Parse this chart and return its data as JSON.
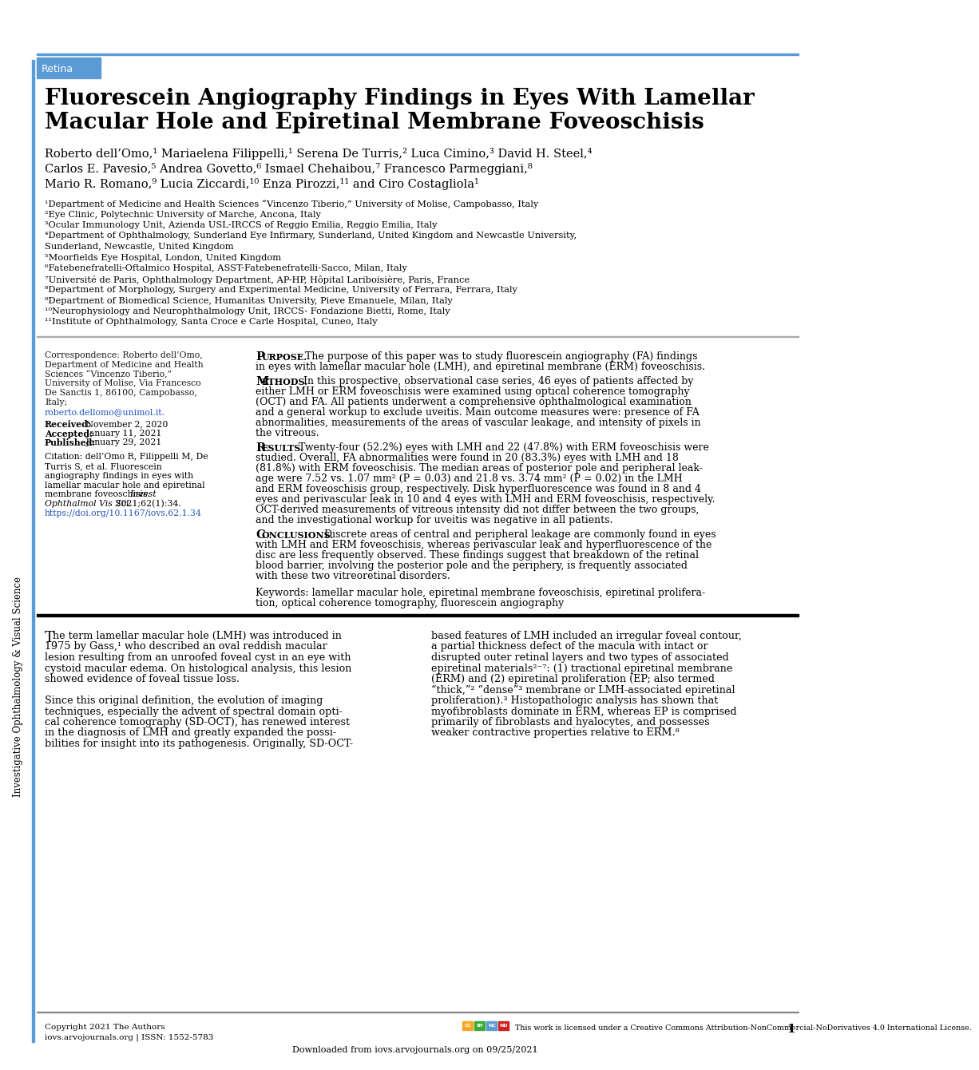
{
  "bg_color": "#ffffff",
  "left_bar_color": "#5b9bd5",
  "retina_box_color": "#5b9bd5",
  "retina_text": "Retina",
  "title_line1": "Fluorescein Angiography Findings in Eyes With Lamellar",
  "title_line2": "Macular Hole and Epiretinal Membrane Foveoschisis",
  "sidebar_text": "Investigative Ophthalmology & Visual Science",
  "footer_copyright_line1": "Copyright 2021 The Authors",
  "footer_copyright_line2": "iovs.arvojournals.org | ISSN: 1552-5783",
  "footer_license": "This work is licensed under a Creative Commons Attribution-NonCommercial-NoDerivatives 4.0 International License.",
  "footer_page": "1",
  "footer_download": "Downloaded from iovs.arvojournals.org on 09/25/2021"
}
